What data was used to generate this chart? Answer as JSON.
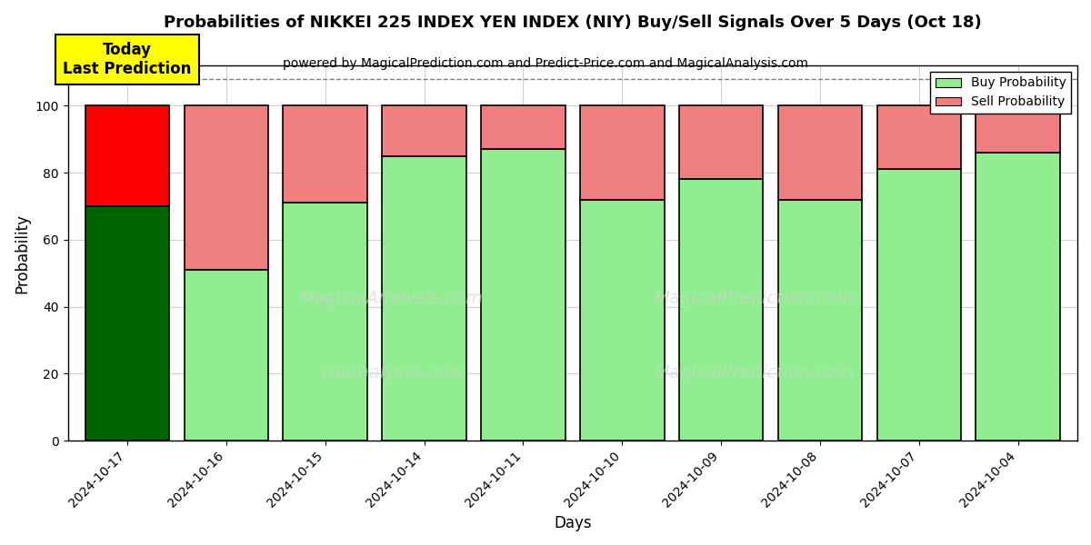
{
  "title": "Probabilities of NIKKEI 225 INDEX YEN INDEX (NIY) Buy/Sell Signals Over 5 Days (Oct 18)",
  "subtitle": "powered by MagicalPrediction.com and Predict-Price.com and MagicalAnalysis.com",
  "xlabel": "Days",
  "ylabel": "Probability",
  "dates": [
    "2024-10-17",
    "2024-10-16",
    "2024-10-15",
    "2024-10-14",
    "2024-10-11",
    "2024-10-10",
    "2024-10-09",
    "2024-10-08",
    "2024-10-07",
    "2024-10-04"
  ],
  "buy_values": [
    70,
    51,
    71,
    85,
    87,
    72,
    78,
    72,
    81,
    86
  ],
  "sell_values": [
    30,
    49,
    29,
    15,
    13,
    28,
    22,
    28,
    19,
    14
  ],
  "today_buy_color": "#006400",
  "today_sell_color": "#FF0000",
  "buy_color": "#90EE90",
  "sell_color": "#F08080",
  "today_annotation": "Today\nLast Prediction",
  "legend_buy": "Buy Probability",
  "legend_sell": "Sell Probability",
  "ylim": [
    0,
    112
  ],
  "dashed_line_y": 108,
  "bar_edge_color": "#000000",
  "background_color": "#ffffff",
  "grid_color": "#d0d0d0",
  "bar_width": 0.85,
  "title_fontsize": 13,
  "subtitle_fontsize": 10,
  "annotation_fontsize": 12
}
